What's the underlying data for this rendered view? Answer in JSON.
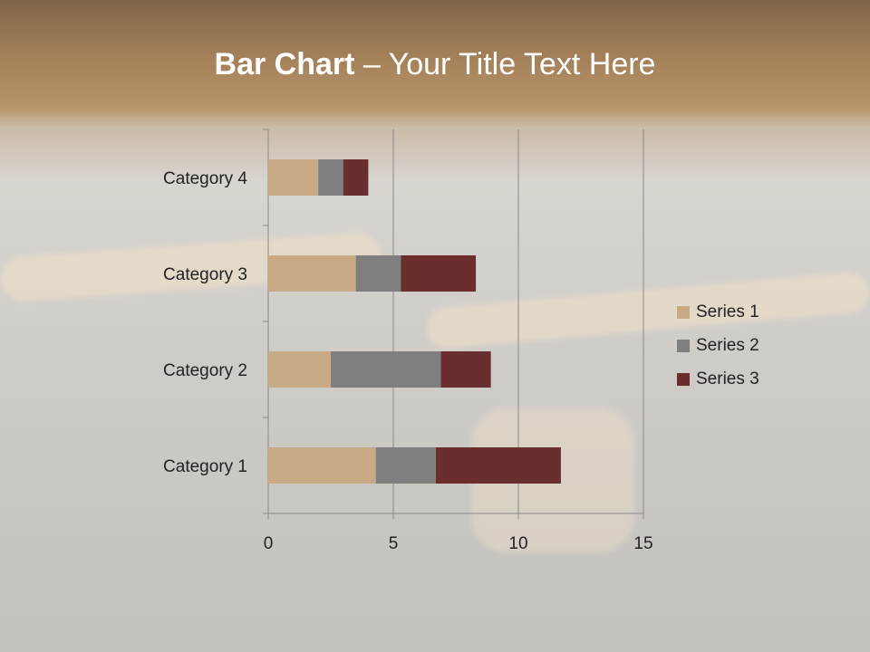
{
  "slide": {
    "title_bold": "Bar Chart",
    "title_rest": " – Your Title Text Here"
  },
  "chart_data": {
    "type": "bar",
    "orientation": "horizontal",
    "stacked": true,
    "categories": [
      "Category 1",
      "Category 2",
      "Category 3",
      "Category 4"
    ],
    "series": [
      {
        "name": "Series 1",
        "values": [
          4.3,
          2.5,
          3.5,
          2.0
        ],
        "color": "#c8aa84"
      },
      {
        "name": "Series 2",
        "values": [
          2.4,
          4.4,
          1.8,
          1.0
        ],
        "color": "#7f7f7f"
      },
      {
        "name": "Series 3",
        "values": [
          5.0,
          2.0,
          3.0,
          1.0
        ],
        "color": "#6a2e2e"
      }
    ],
    "xlim": [
      0,
      15
    ],
    "xticks": [
      0,
      5,
      10,
      15
    ],
    "grid": true,
    "legend": "right"
  }
}
